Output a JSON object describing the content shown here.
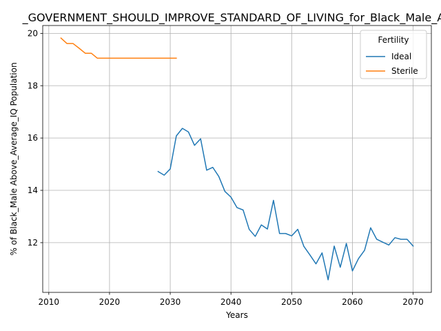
{
  "chart_data": {
    "type": "line",
    "title": "_GOVERNMENT_SHOULD_IMPROVE_STANDARD_OF_LIVING_for_Black_Male_Ab",
    "xlabel": "Years",
    "ylabel": "% of Black_Male Above_Average_IQ Population",
    "xlim": [
      2009,
      2073
    ],
    "ylim": [
      10.1,
      20.3
    ],
    "xticks": [
      2010,
      2020,
      2030,
      2040,
      2050,
      2060,
      2070
    ],
    "yticks": [
      12,
      14,
      16,
      18,
      20
    ],
    "grid": true,
    "legend": {
      "title": "Fertility",
      "placement": "top-right"
    },
    "series": [
      {
        "name": "Ideal",
        "color": "#1f77b4",
        "x": [
          2028,
          2029,
          2030,
          2031,
          2032,
          2033,
          2034,
          2035,
          2036,
          2037,
          2038,
          2039,
          2040,
          2041,
          2042,
          2043,
          2044,
          2045,
          2046,
          2047,
          2048,
          2049,
          2050,
          2051,
          2052,
          2053,
          2054,
          2055,
          2056,
          2057,
          2058,
          2059,
          2060,
          2061,
          2062,
          2063,
          2064,
          2065,
          2066,
          2067,
          2068,
          2069,
          2070
        ],
        "values": [
          14.72,
          14.58,
          14.82,
          16.08,
          16.37,
          16.23,
          15.72,
          15.97,
          14.77,
          14.88,
          14.53,
          13.96,
          13.74,
          13.34,
          13.25,
          12.51,
          12.24,
          12.68,
          12.52,
          13.62,
          12.35,
          12.35,
          12.26,
          12.51,
          11.86,
          11.53,
          11.19,
          11.61,
          10.58,
          11.87,
          11.06,
          11.97,
          10.92,
          11.39,
          11.71,
          12.57,
          12.13,
          12.02,
          11.91,
          12.19,
          12.13,
          12.13,
          11.87
        ]
      },
      {
        "name": "Sterile",
        "color": "#ff7f0e",
        "x": [
          2012,
          2013,
          2014,
          2015,
          2016,
          2017,
          2018,
          2019,
          2020,
          2021,
          2022,
          2023,
          2024,
          2025,
          2026,
          2027,
          2028,
          2029,
          2030,
          2031
        ],
        "values": [
          19.82,
          19.61,
          19.61,
          19.43,
          19.24,
          19.24,
          19.05,
          19.05,
          19.05,
          19.05,
          19.05,
          19.05,
          19.05,
          19.05,
          19.05,
          19.05,
          19.05,
          19.05,
          19.05,
          19.05
        ]
      }
    ]
  }
}
